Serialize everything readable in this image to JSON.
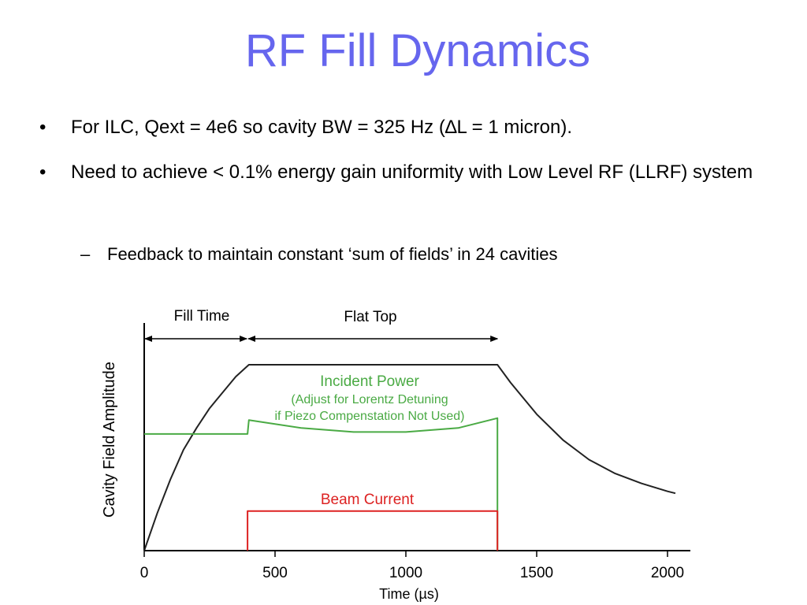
{
  "slide": {
    "title": "RF Fill Dynamics",
    "bullets": [
      {
        "marker": "•",
        "text": "For ILC, Qext = 4e6 so cavity BW = 325 Hz (∆L = 1 micron)."
      },
      {
        "marker": "•",
        "text": "Need to achieve < 0.1% energy gain uniformity with Low Level RF (LLRF) system"
      }
    ],
    "sub_bullet": {
      "marker": "–",
      "text": "Feedback to maintain constant ‘sum of fields’ in 24 cavities"
    }
  },
  "chart_data": {
    "type": "line",
    "xlabel": "Time (µs)",
    "ylabel": "Cavity Field Amplitude",
    "xlim": [
      0,
      2100
    ],
    "x_ticks": [
      "0",
      "500",
      "1000",
      "1500",
      "2000"
    ],
    "colors": {
      "cavity_field": "#222222",
      "incident_power": "#4aaa44",
      "beam_current": "#dd2222",
      "axis": "#000000"
    },
    "series": [
      {
        "key": "cavity_field",
        "x": [
          0,
          50,
          100,
          150,
          200,
          250,
          300,
          350,
          400,
          1350,
          1400,
          1500,
          1600,
          1700,
          1800,
          1900,
          2000,
          2030
        ],
        "y": [
          0,
          0.19,
          0.36,
          0.51,
          0.62,
          0.72,
          0.8,
          0.88,
          0.94,
          0.94,
          0.85,
          0.69,
          0.56,
          0.46,
          0.39,
          0.34,
          0.3,
          0.29
        ]
      },
      {
        "key": "incident_power",
        "x": [
          0,
          395,
          395,
          400,
          600,
          800,
          1000,
          1200,
          1350,
          1350
        ],
        "y": [
          0.59,
          0.59,
          0.59,
          0.66,
          0.62,
          0.6,
          0.6,
          0.62,
          0.67,
          0.0
        ]
      },
      {
        "key": "beam_current",
        "x": [
          395,
          395,
          1350,
          1350
        ],
        "y": [
          0.0,
          0.2,
          0.2,
          0.0
        ]
      }
    ],
    "annotations": {
      "fill_time": "Fill Time",
      "flat_top": "Flat Top",
      "incident_power_title": "Incident Power",
      "incident_power_note_1": "(Adjust for Lorentz Detuning",
      "incident_power_note_2": "if Piezo Compenstation Not Used)",
      "beam_current": "Beam Current"
    }
  }
}
